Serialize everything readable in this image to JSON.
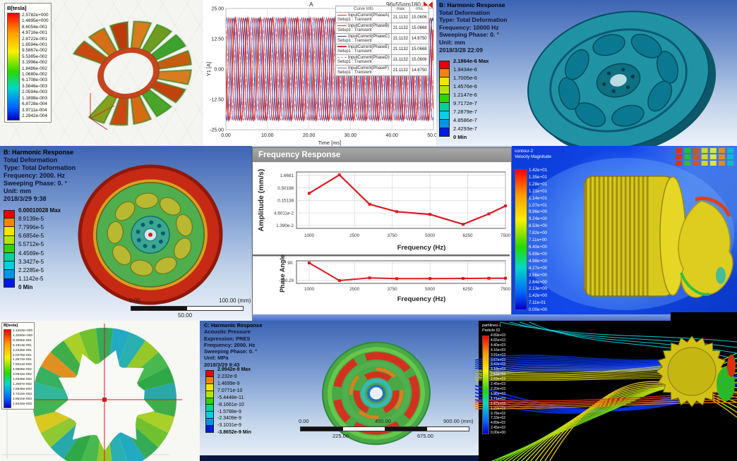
{
  "maxwell_top": {
    "legend_title": "B[tesla]",
    "values": [
      "2.5782e+000",
      "1.4895e+000",
      "8.6054e-001",
      "4.9716e-001",
      "2.8722e-001",
      "1.6594e-001",
      "9.5867e-002",
      "5.5385e-002",
      "3.1996e-002",
      "1.8486e-002",
      "1.0680e-002",
      "6.1708e-003",
      "3.5646e-003",
      "2.0594e-003",
      "1.1898e-003",
      "6.8728e-004",
      "3.9711e-004",
      "2.2942e-004"
    ]
  },
  "harmonic_top": {
    "info": [
      "B: Harmonic Response",
      "Total Deformation",
      "Type: Total Deformation",
      "Frequency: 10000 Hz",
      "Sweeping Phase: 0. °",
      "Unit: mm",
      "2018/3/28 22:09"
    ],
    "legend": [
      "2.1864e-6 Max",
      "1.9434e-6",
      "1.7005e-6",
      "1.4576e-6",
      "1.2147e-6",
      "9.7172e-7",
      "7.2879e-7",
      "4.8586e-7",
      "2.4293e-7",
      "0 Min"
    ]
  },
  "harmonic_left": {
    "info": [
      "B: Harmonic Response",
      "Total Deformation",
      "Type: Total Deformation",
      "Frequency: 2000. Hz",
      "Sweeping Phase: 0. °",
      "Unit: mm",
      "2018/3/29 9:38"
    ],
    "legend": [
      "0.00010028 Max",
      "8.9139e-5",
      "7.7996e-5",
      "6.6854e-5",
      "5.5712e-5",
      "4.4569e-5",
      "3.3427e-5",
      "2.2285e-5",
      "1.1142e-5",
      "0 Min"
    ],
    "ruler": [
      "0.00",
      "50.00",
      "100.00 (mm)"
    ]
  },
  "freq_response": {
    "window_title": "Frequency Response"
  },
  "cfd_contour": {
    "legend_title_1": "contour-2",
    "legend_title_2": "Velocity Magnitude",
    "values": [
      "1.42e+01",
      "1.35e+01",
      "1.28e+01",
      "1.21e+01",
      "1.14e+01",
      "1.07e+01",
      "9.96e+00",
      "9.24e+00",
      "8.53e+00",
      "7.82e+00",
      "7.11e+00",
      "6.40e+00",
      "5.69e+00",
      "4.98e+00",
      "4.27e+00",
      "3.56e+00",
      "2.84e+00",
      "2.13e+00",
      "1.42e+00",
      "7.11e-01",
      "0.00e+00"
    ]
  },
  "maxwell_bottom": {
    "legend_title": "B[tesla]",
    "values": [
      "2.1263e+000",
      "1.3290e+000",
      "8.3060e-001",
      "5.1913e-001",
      "3.2445e-001",
      "2.0278e-001",
      "1.2674e-001",
      "7.9212e-002",
      "4.9508e-002",
      "3.0942e-002",
      "1.9339e-002",
      "1.2087e-002",
      "7.5545e-003",
      "4.7216e-003",
      "2.9510e-003",
      "1.8444e-003"
    ]
  },
  "acoustic": {
    "info": [
      "C: Harmonic Response",
      "Acoustic Pressure",
      "Expression: PRES",
      "Frequency: 2000. Hz",
      "Sweeping Phase: 0. °",
      "Unit: MPa",
      "2018/3/29 9:43"
    ],
    "legend": [
      "2.9942e-9 Max",
      "2.232e-9",
      "1.4699e-9",
      "7.0771e-10",
      "-5.4448e-11",
      "-8.1661e-10",
      "-1.5788e-9",
      "-2.3409e-9",
      "-3.1031e-9",
      "-3.8652e-9 Min"
    ],
    "ruler_top": [
      "0.00",
      "450.00",
      "900.00 (mm)"
    ],
    "ruler_bottom": [
      "225.00",
      "675.00"
    ]
  },
  "pathlines": {
    "legend_title_1": "pathlines-1",
    "legend_title_2": "Particle ID",
    "values": [
      "4.89e+03",
      "4.65e+03",
      "4.40e+03",
      "4.16e+03",
      "3.91e+03",
      "3.67e+03",
      "3.42e+03",
      "3.18e+03",
      "2.93e+03",
      "2.69e+03",
      "2.45e+03",
      "2.20e+03",
      "1.96e+03",
      "1.71e+03",
      "1.47e+03",
      "1.22e+03",
      "9.78e+02",
      "7.33e+02",
      "4.89e+02",
      "2.45e+02",
      "0.00e+00"
    ]
  },
  "colors": {
    "ansys_bands": [
      "#e60000",
      "#f28500",
      "#f2e600",
      "#b4e600",
      "#2fd400",
      "#00d49b",
      "#00cfe6",
      "#0095e6",
      "#0019e6"
    ],
    "curve_red": "#e01820",
    "ansys_bg_top": "#3c64b4",
    "cfd_bg_blue": "#1248ea"
  },
  "chart_data": [
    {
      "type": "line",
      "title": "A",
      "corner_label": "96v55nm180",
      "xlabel": "Time [ms]",
      "ylabel": "Y1 [A]",
      "xlim": [
        0,
        50
      ],
      "ylim": [
        -25,
        25
      ],
      "xticks": [
        "0.00",
        "10.00",
        "20.00",
        "30.00",
        "40.00",
        "50.00"
      ],
      "yticks": [
        "25.00",
        "12.50",
        "0.00",
        "-12.50",
        "-25.00"
      ],
      "signal": "sinusoid",
      "amplitude": 21.1132,
      "period_ms": 3,
      "table_headers": [
        "Curve Info",
        "max",
        "rms"
      ],
      "series": [
        {
          "name": "InputCurrent(PhaseA)",
          "setup": "Setup1 : Transient",
          "max": "21.1132",
          "rms": "15.0606",
          "phase_deg": 0,
          "color": "#e02828",
          "dash": "",
          "width": 1.1
        },
        {
          "name": "InputCurrent(PhaseB)",
          "setup": "Setup1 : Transient",
          "max": "21.1132",
          "rms": "15.0668",
          "phase_deg": 300,
          "color": "#9a4242",
          "dash": "",
          "width": 1.1
        },
        {
          "name": "InputCurrent(PhaseC)",
          "setup": "Setup1 : Transient",
          "max": "21.1132",
          "rms": "14.8750",
          "phase_deg": 240,
          "color": "#2636b4",
          "dash": "",
          "width": 1.1
        },
        {
          "name": "InputCurrent(PhaseE)",
          "setup": "Setup1 : Transient",
          "max": "21.1132",
          "rms": "15.0668",
          "phase_deg": 180,
          "color": "#e02828",
          "dash": "",
          "width": 1.8
        },
        {
          "name": "InputCurrent(PhaseD)",
          "setup": "Setup1 : Transient",
          "max": "21.1132",
          "rms": "15.0606",
          "phase_deg": 120,
          "color": "#c08585",
          "dash": "5,3",
          "width": 1.1
        },
        {
          "name": "InputCurrent(PhaseF)",
          "setup": "Setup1 : Transient",
          "max": "21.1132",
          "rms": "14.8750",
          "phase_deg": 60,
          "color": "#6572d6",
          "dash": "",
          "width": 1.1
        }
      ]
    },
    {
      "type": "line",
      "log_y": true,
      "ylabel": "Amplitude (mm/s)",
      "xlabel": "Frequency (Hz)",
      "x": [
        1000,
        2000,
        3000,
        3900,
        5000,
        6100,
        6950,
        7500
      ],
      "y": [
        0.3,
        1.75,
        0.105,
        0.052,
        0.04,
        0.0155,
        0.042,
        0.09
      ],
      "ytick_labels": [
        "1.6681",
        "0.50198",
        "0.15138",
        "4.6011e-2",
        "1.390e-2"
      ],
      "ytick_values": [
        1.6681,
        0.50198,
        0.15138,
        0.046011,
        0.0139
      ],
      "xticks": [
        1000,
        2500,
        3750,
        5000,
        6250,
        7500
      ],
      "line_color": "#e01820"
    },
    {
      "type": "line",
      "ylabel": "Phase Angle",
      "xlabel": "Frequency (Hz)",
      "x": [
        1000,
        2000,
        3000,
        3900,
        5000,
        6100,
        6950,
        7500
      ],
      "y": [
        90,
        -160,
        -122,
        -133,
        -132,
        -130,
        -128,
        -127
      ],
      "ytick_labels": [
        "90.",
        "-160.29"
      ],
      "ytick_values": [
        90,
        -160.29
      ],
      "xticks": [
        1000,
        2500,
        3750,
        5000,
        6250,
        7500
      ],
      "line_color": "#e01820"
    }
  ]
}
